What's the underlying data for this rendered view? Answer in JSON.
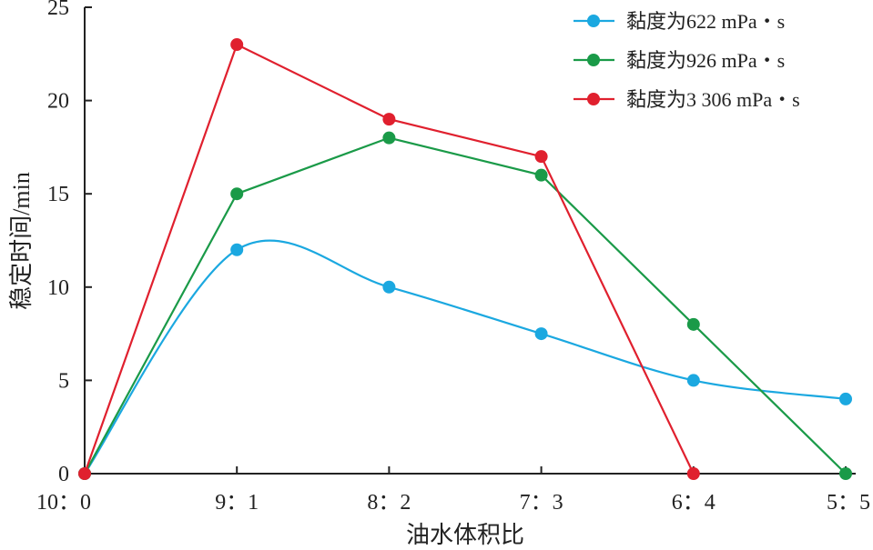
{
  "chart_data": {
    "type": "line",
    "title": "",
    "xlabel": "油水体积比",
    "ylabel": "稳定时间/min",
    "categories": [
      "10：0",
      "9：1",
      "8：2",
      "7：3",
      "6：4",
      "5：5"
    ],
    "ylim": [
      0,
      25
    ],
    "yticks": [
      0,
      5,
      10,
      15,
      20,
      25
    ],
    "grid": false,
    "legend_position": "top-right",
    "series": [
      {
        "name": "黏度为622 mPa・s",
        "color": "#1ba8e0",
        "smooth": true,
        "values": [
          0,
          12,
          10,
          7.5,
          5,
          4
        ]
      },
      {
        "name": "黏度为926 mPa・s",
        "color": "#1a9a48",
        "smooth": false,
        "values": [
          0,
          15,
          18,
          16,
          8,
          0
        ]
      },
      {
        "name": "黏度为3 306 mPa・s",
        "color": "#e0202e",
        "smooth": false,
        "values": [
          0,
          23,
          19,
          17,
          0,
          null
        ]
      }
    ]
  }
}
